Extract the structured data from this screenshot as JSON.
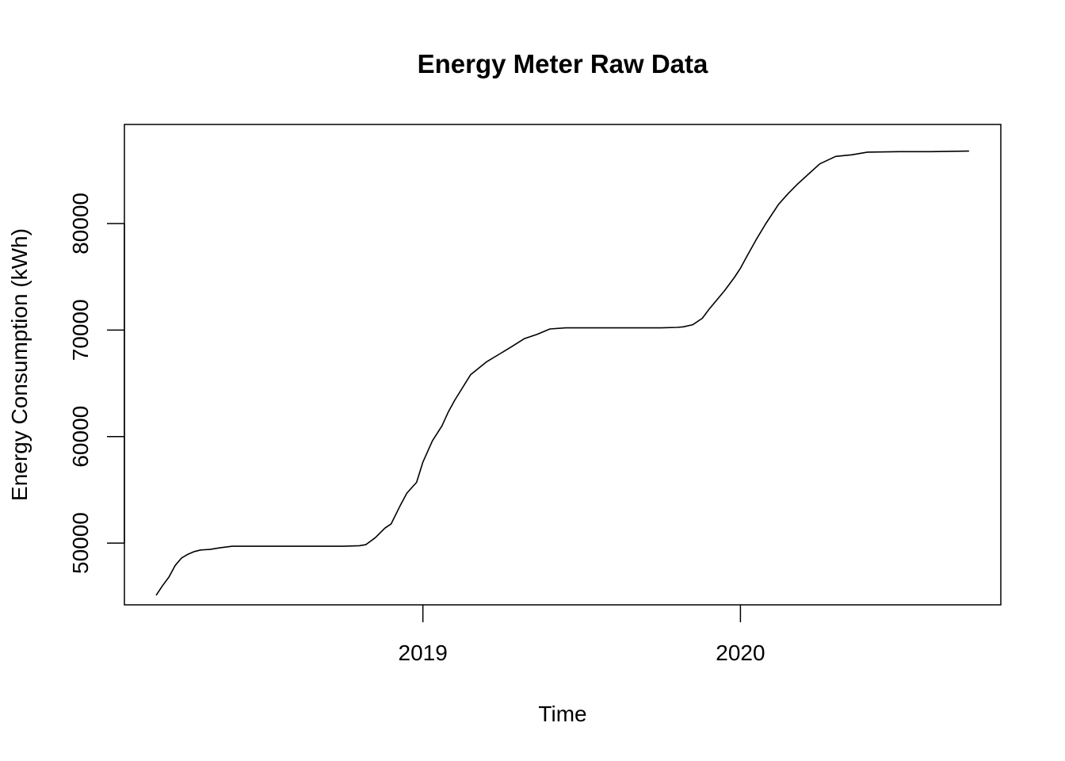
{
  "chart_data": {
    "type": "line",
    "title": "Energy Meter Raw Data",
    "xlabel": "Time",
    "ylabel": "Energy Consumption (kWh)",
    "x_ticks": [
      2019,
      2020
    ],
    "y_ticks": [
      50000,
      60000,
      70000,
      80000
    ],
    "xlim": [
      2018.06,
      2020.82
    ],
    "ylim": [
      44200,
      89300
    ],
    "grid": false,
    "series": [
      {
        "x": [
          2018.16,
          2018.18,
          2018.2,
          2018.22,
          2018.24,
          2018.26,
          2018.28,
          2018.3,
          2018.33,
          2018.36,
          2018.4,
          2018.45,
          2018.55,
          2018.65,
          2018.75,
          2018.8,
          2018.82,
          2018.85,
          2018.88,
          2018.9,
          2018.93,
          2018.95,
          2018.98,
          2019.0,
          2019.03,
          2019.06,
          2019.08,
          2019.1,
          2019.15,
          2019.2,
          2019.25,
          2019.28,
          2019.32,
          2019.36,
          2019.4,
          2019.45,
          2019.5,
          2019.6,
          2019.7,
          2019.75,
          2019.8,
          2019.82,
          2019.85,
          2019.88,
          2019.9,
          2019.95,
          2019.98,
          2020.0,
          2020.02,
          2020.05,
          2020.08,
          2020.12,
          2020.15,
          2020.18,
          2020.22,
          2020.25,
          2020.3,
          2020.35,
          2020.4,
          2020.5,
          2020.6,
          2020.72
        ],
        "y": [
          45100,
          46000,
          46800,
          47900,
          48600,
          48950,
          49200,
          49350,
          49400,
          49550,
          49700,
          49700,
          49700,
          49700,
          49700,
          49750,
          49850,
          50500,
          51400,
          51800,
          53600,
          54700,
          55700,
          57600,
          59600,
          61000,
          62300,
          63400,
          65800,
          67000,
          67900,
          68450,
          69200,
          69600,
          70100,
          70200,
          70200,
          70200,
          70200,
          70200,
          70250,
          70300,
          70500,
          71100,
          71900,
          73700,
          74900,
          75800,
          76900,
          78500,
          80000,
          81800,
          82800,
          83700,
          84800,
          85600,
          86300,
          86450,
          86700,
          86750,
          86750,
          86800
        ]
      }
    ]
  }
}
